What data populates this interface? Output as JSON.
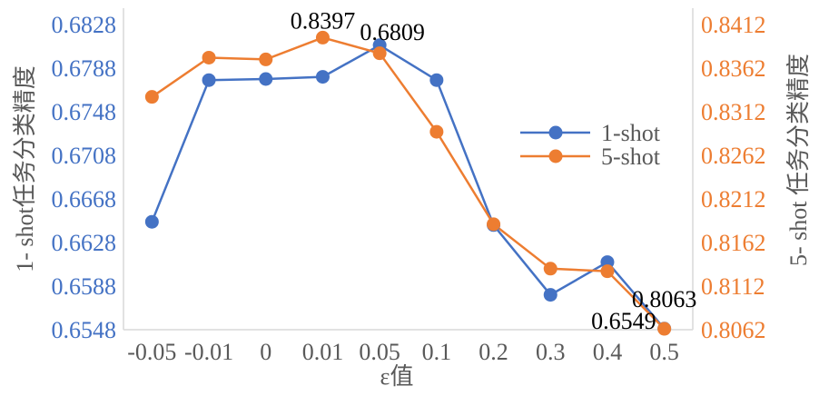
{
  "chart_data": {
    "type": "line",
    "categories": [
      "-0.05",
      "-0.01",
      "0",
      "0.01",
      "0.05",
      "0.1",
      "0.2",
      "0.3",
      "0.4",
      "0.5"
    ],
    "series": [
      {
        "name": "1-shot",
        "axis": "left",
        "color": "#4472C4",
        "values": [
          0.6647,
          0.6777,
          0.6778,
          0.678,
          0.6809,
          0.6777,
          0.6644,
          0.658,
          0.661,
          0.6549
        ]
      },
      {
        "name": "5-shot",
        "axis": "right",
        "color": "#ED7D31",
        "values": [
          0.8329,
          0.8374,
          0.8372,
          0.8397,
          0.8379,
          0.8289,
          0.8183,
          0.8132,
          0.8129,
          0.8063
        ]
      }
    ],
    "data_labels": [
      {
        "text": "0.8397",
        "series": 1,
        "index": 3
      },
      {
        "text": "0.6809",
        "series": 0,
        "index": 4
      },
      {
        "text": "0.6549",
        "series": 0,
        "index": 9
      },
      {
        "text": "0.8063",
        "series": 1,
        "index": 9
      }
    ],
    "left_axis": {
      "ticks": [
        "0.6548",
        "0.6588",
        "0.6628",
        "0.6668",
        "0.6708",
        "0.6748",
        "0.6788",
        "0.6828"
      ],
      "ylim": [
        0.6548,
        0.6828
      ],
      "label": "1- shot任务分类精度"
    },
    "right_axis": {
      "ticks": [
        "0.8062",
        "0.8112",
        "0.8162",
        "0.8212",
        "0.8262",
        "0.8312",
        "0.8362",
        "0.8412"
      ],
      "ylim": [
        0.8062,
        0.8412
      ],
      "label": "5- shot 任务分类精度"
    },
    "xlabel": "ε值",
    "grid": false,
    "legend_position": "right"
  }
}
